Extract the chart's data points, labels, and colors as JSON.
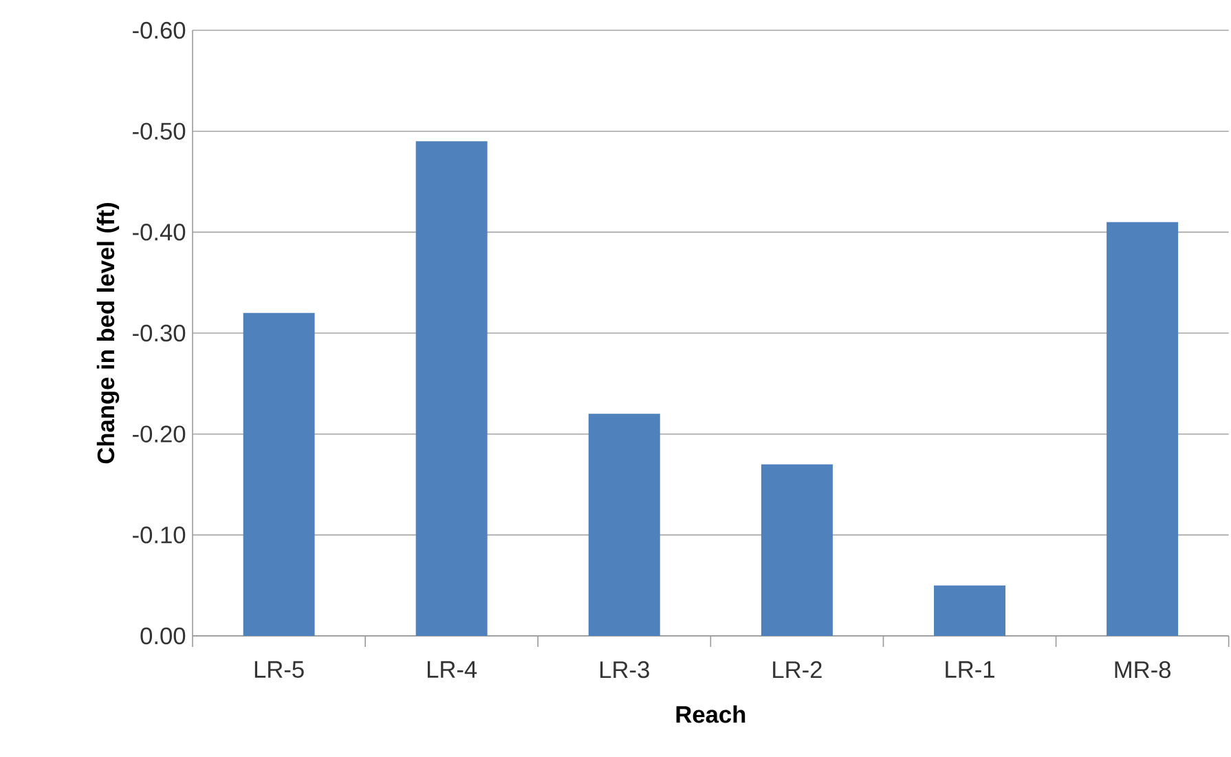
{
  "chart_data": {
    "type": "bar",
    "xlabel": "Reach",
    "ylabel": "Change in bed level (ft)",
    "categories": [
      "LR-5",
      "LR-4",
      "LR-3",
      "LR-2",
      "LR-1",
      "MR-8"
    ],
    "values": [
      -0.32,
      -0.49,
      -0.22,
      -0.17,
      -0.05,
      -0.41
    ],
    "color": "#4f81bd",
    "ylim": [
      0,
      -0.6
    ],
    "yticks": [
      {
        "value": 0,
        "label": "0.00"
      },
      {
        "value": -0.1,
        "label": "-0.10"
      },
      {
        "value": -0.2,
        "label": "-0.20"
      },
      {
        "value": -0.3,
        "label": "-0.30"
      },
      {
        "value": -0.4,
        "label": "-0.40"
      },
      {
        "value": -0.5,
        "label": "-0.50"
      },
      {
        "value": -0.6,
        "label": "-0.60"
      }
    ],
    "grid": "y"
  }
}
